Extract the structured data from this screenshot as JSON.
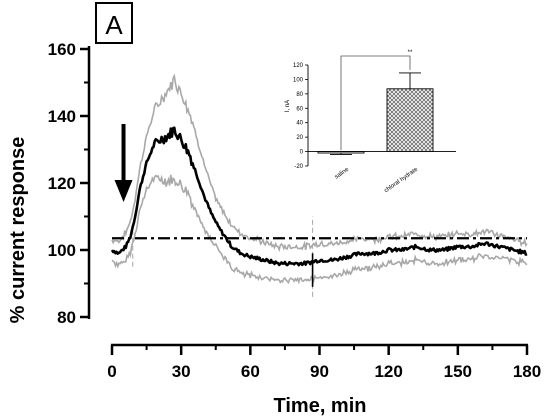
{
  "panel_label": "A",
  "chart_data": [
    {
      "type": "line",
      "xlabel": "Time, min",
      "ylabel": "% current response",
      "xlim": [
        0,
        180
      ],
      "ylim": [
        80,
        160
      ],
      "x_ticks": [
        "0",
        "30",
        "60",
        "90",
        "120",
        "150",
        "180"
      ],
      "y_ticks": [
        "80",
        "100",
        "120",
        "140",
        "160"
      ],
      "reference_line": 103.5,
      "arrow_at": 5,
      "mean_keypoints": [
        [
          0,
          100
        ],
        [
          3,
          99
        ],
        [
          6,
          101
        ],
        [
          8,
          104
        ],
        [
          10,
          110
        ],
        [
          12,
          118
        ],
        [
          15,
          126
        ],
        [
          18,
          131
        ],
        [
          21,
          133
        ],
        [
          24,
          134
        ],
        [
          27,
          136
        ],
        [
          29,
          134
        ],
        [
          31,
          132
        ],
        [
          34,
          128
        ],
        [
          37,
          122
        ],
        [
          40,
          116
        ],
        [
          43,
          111
        ],
        [
          46,
          107
        ],
        [
          49,
          104
        ],
        [
          52,
          101
        ],
        [
          56,
          99
        ],
        [
          60,
          98
        ],
        [
          66,
          97
        ],
        [
          72,
          96
        ],
        [
          78,
          96
        ],
        [
          84,
          96
        ],
        [
          90,
          97
        ],
        [
          96,
          97
        ],
        [
          102,
          98
        ],
        [
          108,
          99
        ],
        [
          114,
          99
        ],
        [
          120,
          100
        ],
        [
          126,
          100
        ],
        [
          132,
          101
        ],
        [
          138,
          100
        ],
        [
          144,
          100
        ],
        [
          150,
          101
        ],
        [
          156,
          101
        ],
        [
          162,
          102
        ],
        [
          168,
          101
        ],
        [
          174,
          100
        ],
        [
          180,
          99
        ]
      ],
      "sem_keypoints": [
        [
          0,
          3
        ],
        [
          10,
          5
        ],
        [
          20,
          11
        ],
        [
          27,
          15
        ],
        [
          35,
          12
        ],
        [
          45,
          7
        ],
        [
          55,
          6
        ],
        [
          70,
          5
        ],
        [
          90,
          5
        ],
        [
          120,
          4
        ],
        [
          150,
          4
        ],
        [
          180,
          3
        ]
      ],
      "series": [
        {
          "name": "",
          "color": "#000000"
        },
        {
          "name": "",
          "color": "#a8a8a8"
        }
      ]
    },
    {
      "type": "bar",
      "ylabel": "I, nA",
      "categories": [
        "saline",
        "chloral hydrate"
      ],
      "values": [
        -2,
        87
      ],
      "errors": [
        2,
        22
      ],
      "ylim": [
        -20,
        120
      ],
      "y_ticks": [
        "-20",
        "0",
        "20",
        "40",
        "60",
        "80",
        "100",
        "120"
      ],
      "significance": "**"
    }
  ]
}
